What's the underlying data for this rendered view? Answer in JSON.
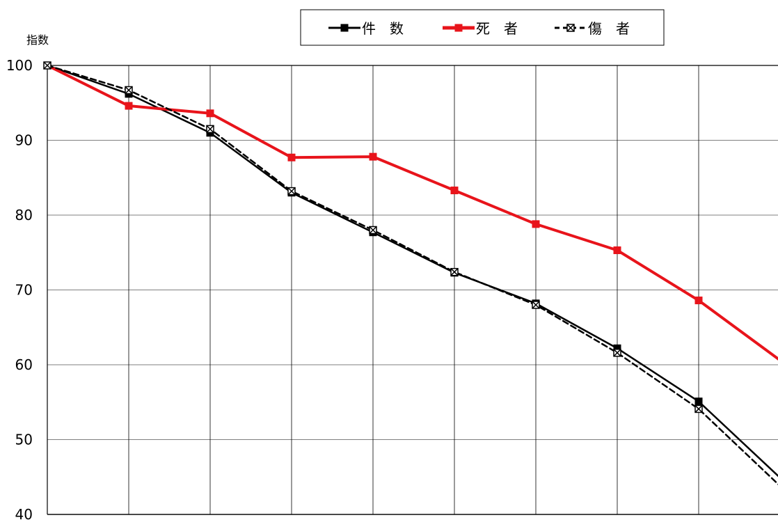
{
  "chart_data": {
    "type": "line",
    "title": "",
    "xlabel": "",
    "ylabel": "指数",
    "ylim": [
      40,
      100
    ],
    "yticks": [
      40,
      50,
      60,
      70,
      80,
      90,
      100
    ],
    "x": [
      1,
      2,
      3,
      4,
      5,
      6,
      7,
      8,
      9,
      10
    ],
    "grid": {
      "horizontal": true,
      "vertical": true
    },
    "legend": {
      "placement": "top-center"
    },
    "series": [
      {
        "name": "件　数",
        "color": "#000000",
        "marker": "square",
        "dash": "solid",
        "values": [
          100,
          96.2,
          91.0,
          83.0,
          77.7,
          72.3,
          68.2,
          62.2,
          55.1,
          44.9
        ]
      },
      {
        "name": "死　者",
        "color": "#e8141b",
        "marker": "square",
        "dash": "solid",
        "values": [
          100,
          94.6,
          93.6,
          87.7,
          87.8,
          83.3,
          78.8,
          75.3,
          68.6,
          60.6
        ]
      },
      {
        "name": "傷　者",
        "color": "#000000",
        "marker": "x-square",
        "dash": "dashed",
        "values": [
          100,
          96.7,
          91.5,
          83.2,
          78.0,
          72.4,
          68.0,
          61.6,
          54.1,
          43.8
        ]
      }
    ]
  }
}
